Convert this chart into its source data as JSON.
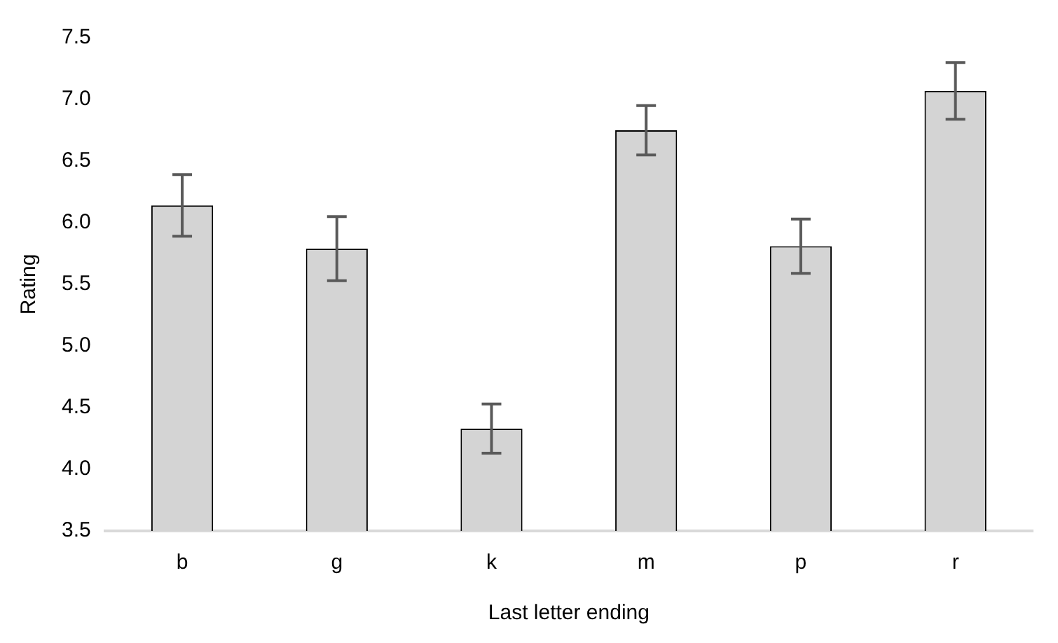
{
  "chart_data": {
    "type": "bar",
    "xlabel": "Last letter ending",
    "ylabel": "Rating",
    "categories": [
      "b",
      "g",
      "k",
      "m",
      "p",
      "r"
    ],
    "values": [
      6.14,
      5.79,
      4.33,
      6.75,
      5.81,
      7.07
    ],
    "errors": [
      0.25,
      0.26,
      0.2,
      0.2,
      0.22,
      0.23
    ],
    "color": "#d4d4d4",
    "ylim": [
      3.5,
      7.5
    ],
    "yticks": [
      3.5,
      {
        "value": 4,
        "label": "4.0"
      },
      4.5,
      {
        "value": 5,
        "label": "5.0"
      },
      5.5,
      {
        "value": 6,
        "label": "6.0"
      },
      6.5,
      {
        "value": 7,
        "label": "7.0"
      },
      7.5
    ],
    "grid": false,
    "legend": false
  }
}
